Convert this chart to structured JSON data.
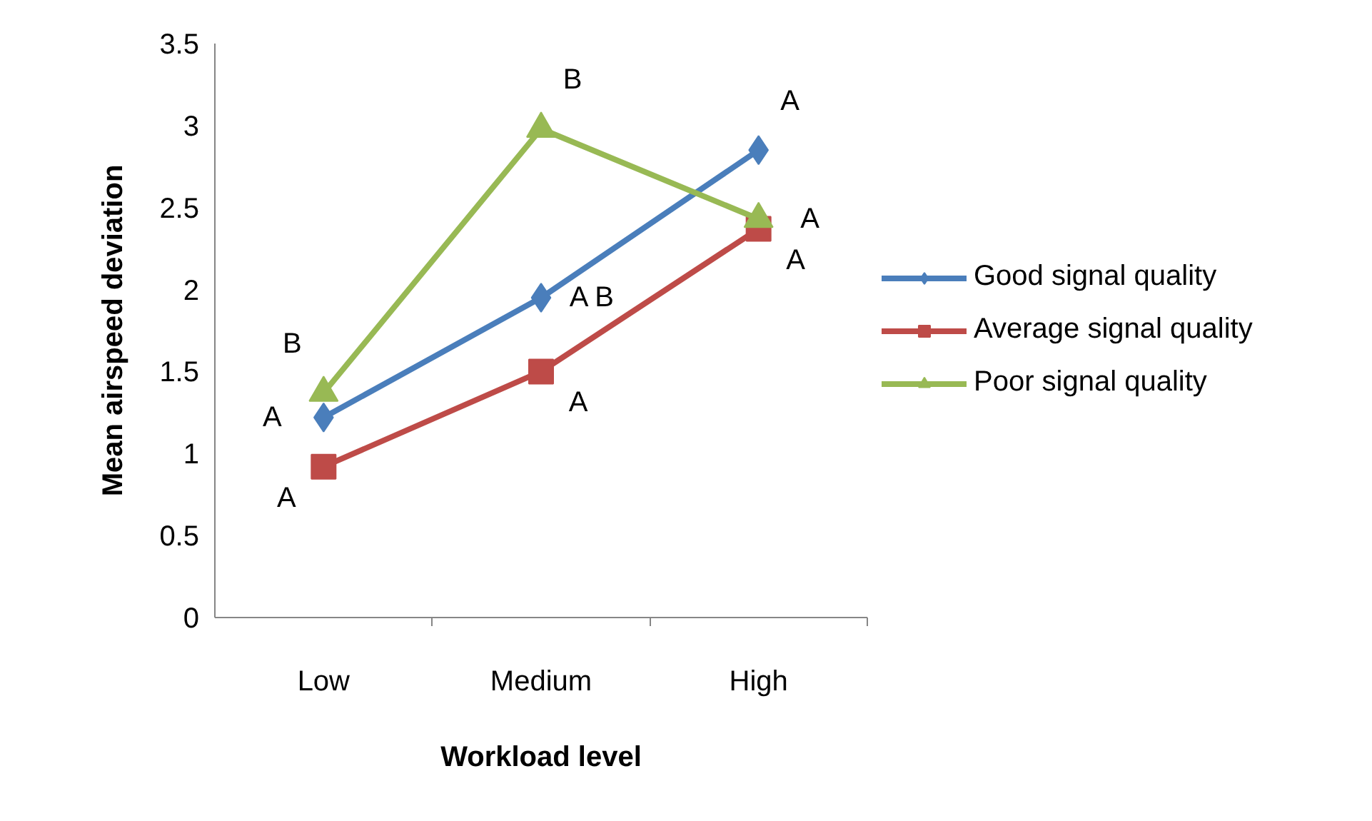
{
  "chart_data": {
    "type": "line",
    "xlabel": "Workload level",
    "ylabel": "Mean airspeed deviation",
    "categories": [
      "Low",
      "Medium",
      "High"
    ],
    "series": [
      {
        "name": "Good signal quality",
        "color": "#4a7ebb",
        "values": [
          1.22,
          1.95,
          2.85
        ],
        "marker": "diamond"
      },
      {
        "name": "Average signal quality",
        "color": "#be4b48",
        "values": [
          0.92,
          1.5,
          2.37
        ],
        "marker": "square"
      },
      {
        "name": "Poor signal quality",
        "color": "#98b954",
        "values": [
          1.37,
          2.98,
          2.43
        ],
        "marker": "triangle"
      }
    ],
    "ylim": [
      0,
      3.5
    ],
    "yticks": [
      0,
      0.5,
      1,
      1.5,
      2,
      2.5,
      3,
      3.5
    ],
    "grid": false,
    "legend": "right",
    "line_style": "solid",
    "annotations": [
      {
        "text": "A",
        "x": "Low",
        "y": 1.22
      },
      {
        "text": "A",
        "x": "Low",
        "y": 0.92
      },
      {
        "text": "B",
        "x": "Low",
        "y": 1.37
      },
      {
        "text": "A B",
        "x": "Medium",
        "y": 1.95
      },
      {
        "text": "A",
        "x": "Medium",
        "y": 1.5
      },
      {
        "text": "B",
        "x": "Medium",
        "y": 2.98
      },
      {
        "text": "A",
        "x": "High",
        "y": 2.85
      },
      {
        "text": "A",
        "x": "High",
        "y": 2.43
      },
      {
        "text": "A",
        "x": "High",
        "y": 2.37
      }
    ]
  }
}
